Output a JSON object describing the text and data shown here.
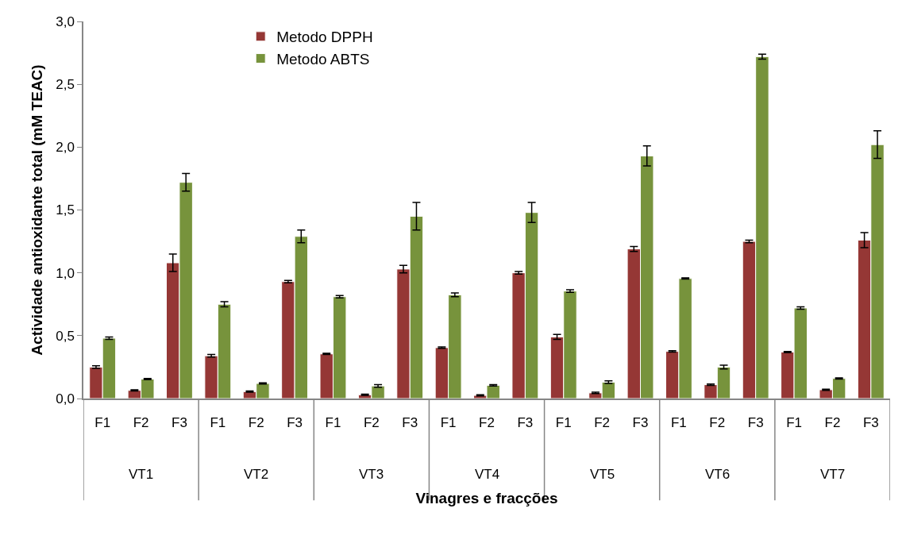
{
  "chart_data": {
    "type": "bar",
    "xlabel": "Vinagres e fracções",
    "ylabel": "Actividade antioxidante total (mM TEAC)",
    "categories": [
      "F1",
      "F2",
      "F3",
      "F1",
      "F2",
      "F3",
      "F1",
      "F2",
      "F3",
      "F1",
      "F2",
      "F3",
      "F1",
      "F2",
      "F3",
      "F1",
      "F2",
      "F3",
      "F1",
      "F2",
      "F3"
    ],
    "annotations": [
      "VT1",
      "VT2",
      "VT3",
      "VT4",
      "VT5",
      "VT6",
      "VT7"
    ],
    "series": [
      {
        "name": "Metodo DPPH",
        "color": "#953735",
        "values": [
          0.25,
          0.065,
          1.08,
          0.34,
          0.055,
          0.93,
          0.355,
          0.03,
          1.03,
          0.405,
          0.025,
          1.0,
          0.49,
          0.045,
          1.19,
          0.375,
          0.11,
          1.25,
          0.37,
          0.07,
          1.26
        ],
        "errors": [
          0.01,
          0.005,
          0.07,
          0.01,
          0.005,
          0.01,
          0.005,
          0.005,
          0.03,
          0.005,
          0.005,
          0.01,
          0.02,
          0.005,
          0.02,
          0.005,
          0.005,
          0.01,
          0.005,
          0.005,
          0.06
        ]
      },
      {
        "name": "Metodo ABTS",
        "color": "#77933c",
        "values": [
          0.48,
          0.155,
          1.72,
          0.75,
          0.12,
          1.29,
          0.81,
          0.1,
          1.45,
          0.825,
          0.105,
          1.48,
          0.855,
          0.13,
          1.93,
          0.955,
          0.25,
          2.72,
          0.72,
          0.16,
          2.02
        ],
        "errors": [
          0.01,
          0.005,
          0.07,
          0.02,
          0.005,
          0.05,
          0.01,
          0.01,
          0.11,
          0.015,
          0.005,
          0.08,
          0.01,
          0.01,
          0.08,
          0.005,
          0.015,
          0.02,
          0.01,
          0.005,
          0.11
        ]
      }
    ],
    "ylim": [
      0,
      3
    ],
    "yticks": [
      {
        "value": 0,
        "label": "0,0"
      },
      {
        "value": 0.5,
        "label": "0,5"
      },
      {
        "value": 1,
        "label": "1,0"
      },
      {
        "value": 1.5,
        "label": "1,5"
      },
      {
        "value": 2,
        "label": "2,0"
      },
      {
        "value": 2.5,
        "label": "2,5"
      },
      {
        "value": 3,
        "label": "3,0"
      }
    ],
    "grid": false,
    "legend": "top left"
  }
}
